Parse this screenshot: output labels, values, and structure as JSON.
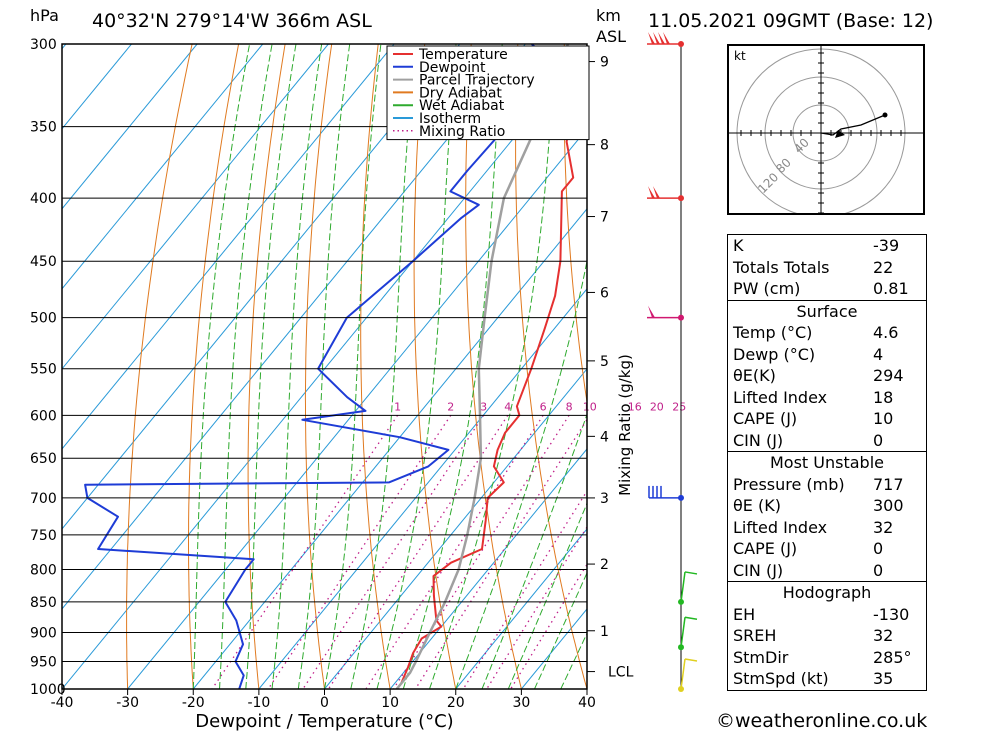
{
  "header": {
    "hpa_label": "hPa",
    "location": "40°32'N  279°14'W  366m  ASL",
    "km_label": "km",
    "asl_label": "ASL",
    "datetime": "11.05.2021  09GMT  (Base: 12)"
  },
  "chart_data": {
    "type": "skew-t",
    "pressure_levels": [
      300,
      350,
      400,
      450,
      500,
      550,
      600,
      650,
      700,
      750,
      800,
      850,
      900,
      950,
      1000
    ],
    "x_ticks": [
      -40,
      -30,
      -20,
      -10,
      0,
      10,
      20,
      30,
      40
    ],
    "xlabel": "Dewpoint / Temperature (°C)",
    "ylabel_right": "Mixing Ratio (g/kg)",
    "xlim": [
      -40,
      40
    ],
    "ylim": [
      1000,
      300
    ],
    "height_km": [
      {
        "label": "9",
        "p": 310
      },
      {
        "label": "8",
        "p": 362
      },
      {
        "label": "7",
        "p": 414
      },
      {
        "label": "6",
        "p": 477
      },
      {
        "label": "5",
        "p": 542
      },
      {
        "label": "4",
        "p": 624
      },
      {
        "label": "3",
        "p": 700
      },
      {
        "label": "2",
        "p": 792
      },
      {
        "label": "1",
        "p": 897
      },
      {
        "label": "LCL",
        "p": 968
      }
    ],
    "mixing_ratio_labels": [
      "1",
      "2",
      "3",
      "4",
      "6",
      "8",
      "10",
      "16",
      "20",
      "25"
    ],
    "legend": [
      {
        "name": "Temperature",
        "color": "#e53030",
        "style": "solid"
      },
      {
        "name": "Dewpoint",
        "color": "#1e3cd6",
        "style": "solid"
      },
      {
        "name": "Parcel Trajectory",
        "color": "#a0a0a0",
        "style": "solid"
      },
      {
        "name": "Dry Adiabat",
        "color": "#e07a20",
        "style": "solid"
      },
      {
        "name": "Wet Adiabat",
        "color": "#2eaa2e",
        "style": "solid"
      },
      {
        "name": "Isotherm",
        "color": "#2a9ad8",
        "style": "solid"
      },
      {
        "name": "Mixing Ratio",
        "color": "#c0208a",
        "style": "dotted"
      }
    ],
    "series": [
      {
        "name": "Temperature",
        "points": [
          [
            300,
            -40
          ],
          [
            330,
            -36
          ],
          [
            360,
            -31.5
          ],
          [
            385,
            -26
          ],
          [
            395,
            -26
          ],
          [
            420,
            -22
          ],
          [
            450,
            -17.5
          ],
          [
            480,
            -14
          ],
          [
            510,
            -11.5
          ],
          [
            550,
            -8.5
          ],
          [
            590,
            -6
          ],
          [
            600,
            -4.5
          ],
          [
            620,
            -4.5
          ],
          [
            640,
            -3.5
          ],
          [
            660,
            -2
          ],
          [
            680,
            1.5
          ],
          [
            700,
            1
          ],
          [
            730,
            3.5
          ],
          [
            770,
            6.5
          ],
          [
            790,
            3.5
          ],
          [
            810,
            2.5
          ],
          [
            840,
            5
          ],
          [
            880,
            8.5
          ],
          [
            890,
            10
          ],
          [
            910,
            8.5
          ],
          [
            935,
            9
          ],
          [
            960,
            10
          ],
          [
            990,
            11
          ]
        ]
      },
      {
        "name": "Dewpoint",
        "points": [
          [
            300,
            -49
          ],
          [
            320,
            -39
          ],
          [
            345,
            -42.5
          ],
          [
            380,
            -43
          ],
          [
            395,
            -43
          ],
          [
            405,
            -37
          ],
          [
            415,
            -38
          ],
          [
            450,
            -40
          ],
          [
            500,
            -43
          ],
          [
            550,
            -41
          ],
          [
            580,
            -33
          ],
          [
            595,
            -28.5
          ],
          [
            605,
            -37
          ],
          [
            625,
            -20
          ],
          [
            640,
            -11
          ],
          [
            660,
            -12
          ],
          [
            680,
            -16
          ],
          [
            683,
            -62
          ],
          [
            700,
            -60
          ],
          [
            725,
            -53
          ],
          [
            770,
            -52
          ],
          [
            785,
            -27
          ],
          [
            790,
            -27
          ],
          [
            800,
            -27
          ],
          [
            850,
            -26
          ],
          [
            880,
            -22
          ],
          [
            920,
            -18
          ],
          [
            950,
            -17
          ],
          [
            975,
            -14
          ],
          [
            1000,
            -13
          ]
        ]
      },
      {
        "name": "Parcel Trajectory",
        "points": [
          [
            300,
            -43.5
          ],
          [
            350,
            -38
          ],
          [
            400,
            -34
          ],
          [
            450,
            -28
          ],
          [
            500,
            -22
          ],
          [
            550,
            -16.5
          ],
          [
            600,
            -10.5
          ],
          [
            650,
            -5
          ],
          [
            700,
            -1
          ],
          [
            750,
            2.5
          ],
          [
            800,
            5.5
          ],
          [
            850,
            7.5
          ],
          [
            900,
            9
          ],
          [
            950,
            10.5
          ],
          [
            970,
            11
          ],
          [
            1000,
            11
          ]
        ]
      }
    ],
    "wind_barbs": [
      {
        "p": 300,
        "color": "#e53030"
      },
      {
        "p": 400,
        "color": "#e53030"
      },
      {
        "p": 500,
        "color": "#d01870"
      },
      {
        "p": 700,
        "color": "#1e3cd6"
      },
      {
        "p": 850,
        "color": "#22b822"
      },
      {
        "p": 925,
        "color": "#22b822"
      },
      {
        "p": 1000,
        "color": "#e0d020"
      }
    ]
  },
  "hodograph": {
    "unit": "kt",
    "ring_labels": [
      "40",
      "80",
      "120"
    ]
  },
  "indices": {
    "general": [
      {
        "key": "K",
        "value": "-39"
      },
      {
        "key": "Totals Totals",
        "value": "22"
      },
      {
        "key": "PW (cm)",
        "value": "0.81"
      }
    ],
    "surface": {
      "title": "Surface",
      "rows": [
        {
          "key": "Temp (°C)",
          "value": "4.6"
        },
        {
          "key": "Dewp (°C)",
          "value": "4"
        },
        {
          "key": "θE(K)",
          "value": "294"
        },
        {
          "key": "Lifted Index",
          "value": "18"
        },
        {
          "key": "CAPE (J)",
          "value": "10"
        },
        {
          "key": "CIN (J)",
          "value": "0"
        }
      ]
    },
    "most_unstable": {
      "title": "Most Unstable",
      "rows": [
        {
          "key": "Pressure (mb)",
          "value": "717"
        },
        {
          "key": "θE (K)",
          "value": "300"
        },
        {
          "key": "Lifted Index",
          "value": "32"
        },
        {
          "key": "CAPE (J)",
          "value": "0"
        },
        {
          "key": "CIN (J)",
          "value": "0"
        }
      ]
    },
    "hodograph": {
      "title": "Hodograph",
      "rows": [
        {
          "key": "EH",
          "value": "-130"
        },
        {
          "key": "SREH",
          "value": "32"
        },
        {
          "key": "StmDir",
          "value": "285°"
        },
        {
          "key": "StmSpd (kt)",
          "value": "35"
        }
      ]
    }
  },
  "credit": "©weatheronline.co.uk"
}
